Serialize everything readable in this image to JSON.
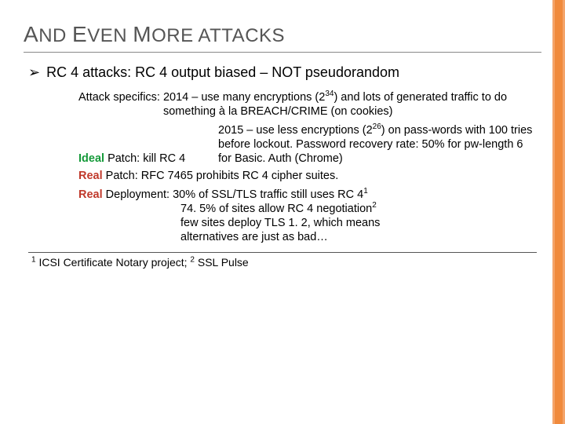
{
  "colors": {
    "title": "#555555",
    "ideal": "#159a3a",
    "real": "#c0392b",
    "stripe_outer": "#f4a46a",
    "stripe_inner": "#f08a3c",
    "hr": "#888888",
    "text": "#000000",
    "background": "#ffffff"
  },
  "typography": {
    "title_fontsize": 24,
    "title_cap_fontsize": 28,
    "bullet_fontsize": 18,
    "body_fontsize": 14.5,
    "footnote_fontsize": 14
  },
  "title_parts": {
    "a": "A",
    "nd": "ND ",
    "e": "E",
    "ven": "VEN ",
    "m": "M",
    "ore": "ORE ATTACKS"
  },
  "bullet": "RC 4 attacks: RC 4 output biased – NOT pseudorandom",
  "attack_label": "Attack specifics: ",
  "attack_2014": "2014 – use many encryptions (2",
  "attack_2014_sup": "34",
  "attack_2014_b": ") and lots of generated traffic to do something à la BREACH/CRIME (on cookies)",
  "attack_2015_a": "2015 – use less encryptions (2",
  "attack_2015_sup": "26",
  "attack_2015_b": ") on pass-words with 100 tries before lockout. Password recovery rate: 50% for pw-length 6 for Basic. Auth (Chrome)",
  "ideal_label": "Ideal",
  "ideal_text": " Patch: kill RC 4",
  "real_label": "Real",
  "real_patch_text": " Patch: RFC 7465 prohibits RC 4 cipher suites.",
  "real_deploy_a": " Deployment: 30% of SSL/TLS traffic still uses RC 4",
  "real_deploy_sup1": "1",
  "real_deploy_b": "74. 5% of sites allow RC 4 negotiation",
  "real_deploy_sup2": "2",
  "real_deploy_c": "few sites deploy TLS 1. 2, which means",
  "real_deploy_d": "alternatives are just as bad…",
  "footnote_1": "1",
  "footnote_1t": " ICSI Certificate Notary project; ",
  "footnote_2": "2",
  "footnote_2t": " SSL Pulse"
}
